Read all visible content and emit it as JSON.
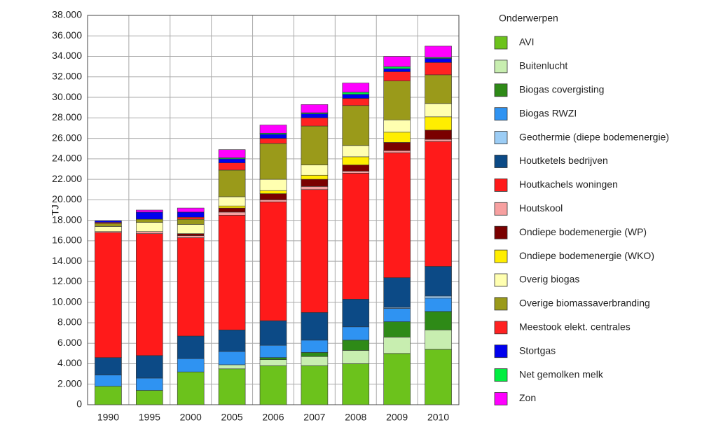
{
  "chart_data": {
    "type": "stacked_bar",
    "y_label": "TJ",
    "legend_title": "Onderwerpen",
    "legend": "right",
    "grid": true,
    "categories": [
      "1990",
      "1995",
      "2000",
      "2005",
      "2006",
      "2007",
      "2008",
      "2009",
      "2010"
    ],
    "ylim": [
      0,
      38000
    ],
    "yticks": [
      0,
      {
        "value": 2000,
        "label": "2.000"
      },
      {
        "value": 4000,
        "label": "4.000"
      },
      {
        "value": 6000,
        "label": "6.000"
      },
      {
        "value": 8000,
        "label": "8.000"
      },
      {
        "value": 10000,
        "label": "10.000"
      },
      {
        "value": 12000,
        "label": "12.000"
      },
      {
        "value": 14000,
        "label": "14.000"
      },
      {
        "value": 16000,
        "label": "16.000"
      },
      {
        "value": 18000,
        "label": "18.000"
      },
      {
        "value": 20000,
        "label": "20.000"
      },
      {
        "value": 22000,
        "label": "22.000"
      },
      {
        "value": 24000,
        "label": "24.000"
      },
      {
        "value": 26000,
        "label": "26.000"
      },
      {
        "value": 28000,
        "label": "28.000"
      },
      {
        "value": 30000,
        "label": "30.000"
      },
      {
        "value": 32000,
        "label": "32.000"
      },
      {
        "value": 34000,
        "label": "34.000"
      },
      {
        "value": 36000,
        "label": "36.000"
      },
      {
        "value": 38000,
        "label": "38.000"
      }
    ],
    "series": [
      {
        "name": "AVI",
        "color": "#6cc21c",
        "values": [
          1800,
          1400,
          3200,
          3500,
          3800,
          3800,
          4000,
          5000,
          5400
        ]
      },
      {
        "name": "Buitenlucht",
        "color": "#c8eeb0",
        "values": [
          0,
          0,
          0,
          400,
          600,
          900,
          1300,
          1600,
          1900
        ]
      },
      {
        "name": "Biogas covergisting",
        "color": "#2e8a17",
        "values": [
          0,
          0,
          0,
          0,
          200,
          400,
          1000,
          1500,
          1800
        ]
      },
      {
        "name": "Biogas RWZI",
        "color": "#2f93f2",
        "values": [
          1100,
          1200,
          1300,
          1300,
          1200,
          1200,
          1300,
          1300,
          1300
        ]
      },
      {
        "name": "Geothermie (diepe bodemenergie)",
        "color": "#9ccdf5",
        "values": [
          0,
          0,
          0,
          0,
          0,
          0,
          0,
          100,
          200
        ]
      },
      {
        "name": "Houtketels bedrijven",
        "color": "#0c4a86",
        "values": [
          1700,
          2200,
          2200,
          2100,
          2400,
          2700,
          2700,
          2900,
          2900
        ]
      },
      {
        "name": "Houtkachels woningen",
        "color": "#ff1a1a",
        "values": [
          12200,
          11900,
          9600,
          11200,
          11600,
          12000,
          12300,
          12200,
          12200
        ]
      },
      {
        "name": "Houtskool",
        "color": "#f7a0a0",
        "values": [
          100,
          200,
          200,
          300,
          200,
          300,
          200,
          200,
          200
        ]
      },
      {
        "name": "Ondiepe bodemenergie (WP)",
        "color": "#7a0000",
        "values": [
          0,
          0,
          200,
          400,
          600,
          700,
          600,
          800,
          900
        ]
      },
      {
        "name": "Ondiepe bodemenergie (WKO)",
        "color": "#ffee00",
        "values": [
          0,
          0,
          0,
          200,
          300,
          400,
          800,
          1000,
          1300
        ]
      },
      {
        "name": "Overig biogas",
        "color": "#ffffb0",
        "values": [
          500,
          900,
          900,
          900,
          1100,
          1000,
          1100,
          1200,
          1300
        ]
      },
      {
        "name": "Overige biomassaverbranding",
        "color": "#9a9a1a",
        "values": [
          300,
          300,
          500,
          2600,
          3500,
          3800,
          3900,
          3800,
          2800
        ]
      },
      {
        "name": "Meestook elekt. centrales",
        "color": "#ff2222",
        "values": [
          100,
          0,
          200,
          700,
          500,
          800,
          700,
          900,
          1200
        ]
      },
      {
        "name": "Stortgas",
        "color": "#0000ee",
        "values": [
          150,
          700,
          500,
          400,
          400,
          400,
          400,
          300,
          400
        ]
      },
      {
        "name": "Net gemolken melk",
        "color": "#00ee40",
        "values": [
          0,
          0,
          0,
          100,
          100,
          100,
          200,
          200,
          100
        ]
      },
      {
        "name": "Zon",
        "color": "#ff00ff",
        "values": [
          0,
          200,
          400,
          800,
          800,
          800,
          900,
          1000,
          1100
        ]
      }
    ]
  }
}
